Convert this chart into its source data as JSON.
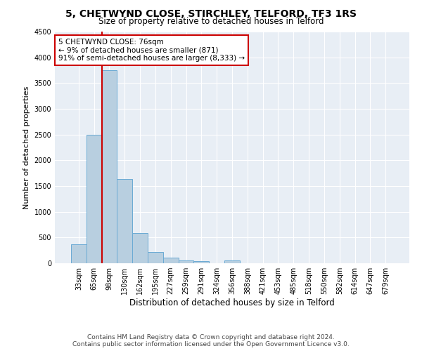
{
  "title": "5, CHETWYND CLOSE, STIRCHLEY, TELFORD, TF3 1RS",
  "subtitle": "Size of property relative to detached houses in Telford",
  "xlabel": "Distribution of detached houses by size in Telford",
  "ylabel": "Number of detached properties",
  "categories": [
    "33sqm",
    "65sqm",
    "98sqm",
    "130sqm",
    "162sqm",
    "195sqm",
    "227sqm",
    "259sqm",
    "291sqm",
    "324sqm",
    "356sqm",
    "388sqm",
    "421sqm",
    "453sqm",
    "485sqm",
    "518sqm",
    "550sqm",
    "582sqm",
    "614sqm",
    "647sqm",
    "679sqm"
  ],
  "values": [
    370,
    2500,
    3750,
    1640,
    590,
    220,
    105,
    55,
    38,
    0,
    55,
    0,
    0,
    0,
    0,
    0,
    0,
    0,
    0,
    0,
    0
  ],
  "bar_color": "#b8cfe0",
  "bar_edge_color": "#6aaad4",
  "property_line_x": 1.5,
  "annotation_line1": "5 CHETWYND CLOSE: 76sqm",
  "annotation_line2": "← 9% of detached houses are smaller (871)",
  "annotation_line3": "91% of semi-detached houses are larger (8,333) →",
  "annotation_box_color": "#ffffff",
  "annotation_box_edge": "#cc0000",
  "vline_color": "#cc0000",
  "ylim": [
    0,
    4500
  ],
  "yticks": [
    0,
    500,
    1000,
    1500,
    2000,
    2500,
    3000,
    3500,
    4000,
    4500
  ],
  "plot_bg": "#e8eef5",
  "grid_color": "#ffffff",
  "fig_bg": "#ffffff",
  "title_fontsize": 10,
  "subtitle_fontsize": 8.5,
  "xlabel_fontsize": 8.5,
  "ylabel_fontsize": 8,
  "tick_fontsize": 7,
  "annotation_fontsize": 7.5,
  "footer_fontsize": 6.5,
  "footer_line1": "Contains HM Land Registry data © Crown copyright and database right 2024.",
  "footer_line2": "Contains public sector information licensed under the Open Government Licence v3.0."
}
